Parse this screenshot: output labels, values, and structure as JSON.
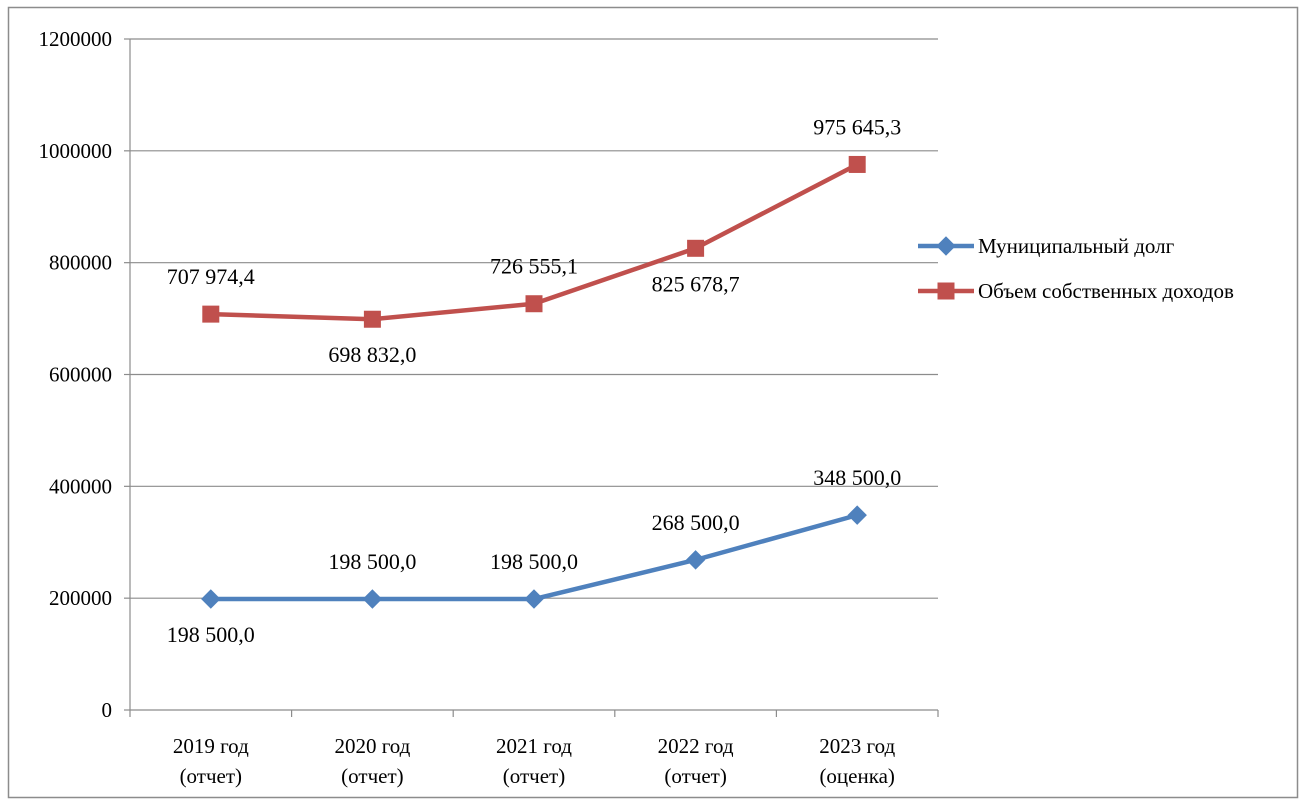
{
  "chart_data": {
    "type": "line",
    "title": "",
    "xlabel": "",
    "ylabel": "",
    "ylim": [
      0,
      1200000
    ],
    "yticks": [
      0,
      200000,
      400000,
      600000,
      800000,
      1000000,
      1200000
    ],
    "ytick_labels": [
      "0",
      "200000",
      "400000",
      "600000",
      "800000",
      "1000000",
      "1200000"
    ],
    "grid": "horizontal",
    "legend_position": "right",
    "categories": [
      [
        "2019 год",
        "(отчет)"
      ],
      [
        "2020 год",
        "(отчет)"
      ],
      [
        "2021 год",
        "(отчет)"
      ],
      [
        "2022 год",
        "(отчет)"
      ],
      [
        "2023 год",
        "(оценка)"
      ]
    ],
    "series": [
      {
        "name": "Муниципальный долг",
        "color": "#4F81BD",
        "marker": "diamond",
        "values": [
          198500.0,
          198500.0,
          198500.0,
          268500.0,
          348500.0
        ],
        "labels": [
          "198 500,0",
          "198 500,0",
          "198 500,0",
          "268 500,0",
          "348 500,0"
        ],
        "label_positions": [
          "below",
          "above",
          "above",
          "above",
          "above"
        ]
      },
      {
        "name": "Объем собственных доходов",
        "color": "#C0504D",
        "marker": "square",
        "values": [
          707974.4,
          698832.0,
          726555.1,
          825678.7,
          975645.3
        ],
        "labels": [
          "707 974,4",
          "698 832,0",
          "726 555,1",
          "825 678,7",
          "975 645,3"
        ],
        "label_positions": [
          "above",
          "below",
          "above",
          "below",
          "above"
        ]
      }
    ]
  },
  "colors": {
    "border": "#8c8c8c",
    "axis": "#8c8c8c",
    "grid": "#8c8c8c"
  }
}
